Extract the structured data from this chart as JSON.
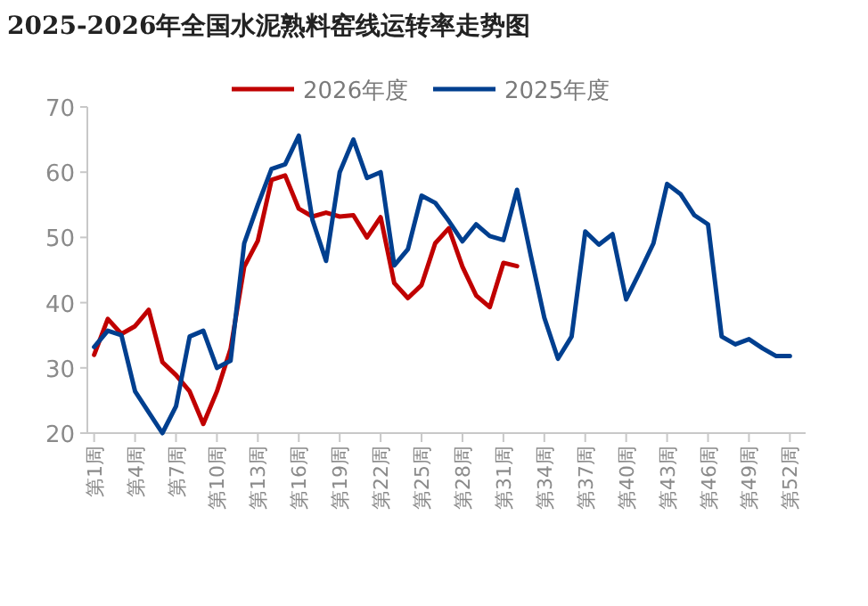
{
  "chart_data": {
    "type": "line",
    "title": "2025-2026年全国水泥熟料窑线运转率走势图",
    "categories": [
      "第1周",
      null,
      null,
      "第4周",
      null,
      null,
      "第7周",
      null,
      null,
      "第10周",
      null,
      null,
      "第13周",
      null,
      null,
      "第16周",
      null,
      null,
      "第19周",
      null,
      null,
      "第22周",
      null,
      null,
      "第25周",
      null,
      null,
      "第28周",
      null,
      null,
      "第31周",
      null,
      null,
      "第34周",
      null,
      null,
      "第37周",
      null,
      null,
      "第40周",
      null,
      null,
      "第43周",
      null,
      null,
      "第46周",
      null,
      null,
      "第49周",
      null,
      null,
      "第52周"
    ],
    "series": [
      {
        "name": "2026年度",
        "color": "#c00000",
        "values": [
          32.0,
          37.5,
          35.2,
          36.4,
          38.9,
          30.9,
          28.9,
          26.4,
          21.4,
          26.4,
          32.9,
          45.5,
          49.5,
          58.8,
          59.5,
          54.4,
          53.2,
          53.8,
          53.2,
          53.4,
          50.0,
          53.1,
          43.0,
          40.7,
          42.7,
          49.1,
          51.4,
          45.5,
          41.1,
          39.3,
          46.1,
          45.6,
          null,
          null,
          null,
          null,
          null,
          null,
          null,
          null,
          null,
          null,
          null,
          null,
          null,
          null,
          null,
          null,
          null,
          null,
          null,
          null
        ]
      },
      {
        "name": "2025年度",
        "color": "#003f8f",
        "values": [
          33.2,
          35.7,
          35.0,
          26.4,
          23.2,
          20.0,
          24.1,
          34.8,
          35.7,
          30.0,
          31.1,
          49.1,
          55.0,
          60.5,
          61.2,
          65.6,
          52.7,
          46.4,
          60.0,
          65.0,
          59.1,
          60.0,
          45.7,
          48.2,
          56.4,
          55.3,
          52.5,
          49.4,
          52.0,
          50.2,
          49.6,
          57.3,
          47.3,
          37.7,
          31.4,
          34.8,
          50.9,
          48.9,
          50.5,
          40.5,
          44.7,
          49.1,
          58.2,
          56.6,
          53.4,
          52.0,
          34.8,
          33.6,
          34.4,
          33.0,
          31.8,
          31.8
        ]
      }
    ],
    "ylim": [
      20,
      70
    ],
    "yticks": [
      20,
      30,
      40,
      50,
      60,
      70
    ],
    "legend": "top"
  }
}
